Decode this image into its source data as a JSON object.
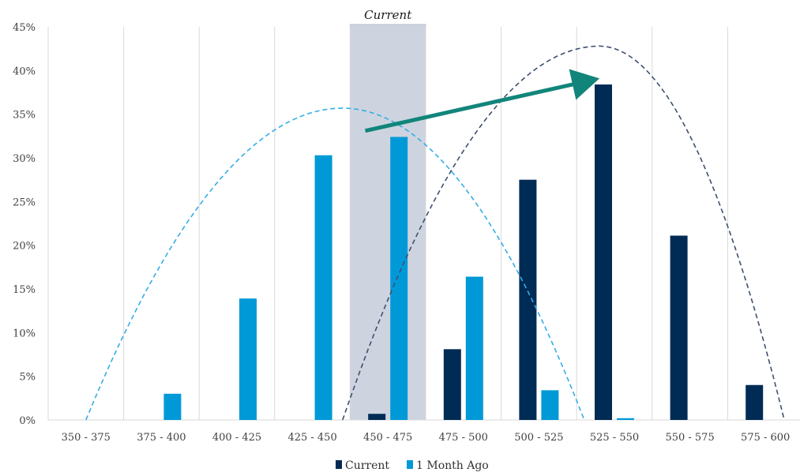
{
  "chart_data": {
    "type": "bar",
    "categories": [
      "350 - 375",
      "375 - 400",
      "400 - 425",
      "425 - 450",
      "450 - 475",
      "475 - 500",
      "500 - 525",
      "525 - 550",
      "550 - 575",
      "575 - 600"
    ],
    "series": [
      {
        "name": "Current",
        "color": "#002b55",
        "values": [
          0,
          0,
          0,
          0,
          0.7,
          8.1,
          27.5,
          38.4,
          21.1,
          4.0
        ]
      },
      {
        "name": "1 Month Ago",
        "color": "#0099d8",
        "values": [
          0,
          3.0,
          13.9,
          30.3,
          32.4,
          16.4,
          3.4,
          0.2,
          0,
          0
        ]
      }
    ],
    "ylim": [
      0,
      45
    ],
    "yticks": [
      "0%",
      "5%",
      "10%",
      "15%",
      "20%",
      "25%",
      "30%",
      "35%",
      "40%",
      "45%"
    ],
    "ytick_values": [
      0,
      5,
      10,
      15,
      20,
      25,
      30,
      35,
      40,
      45
    ],
    "grid": "vertical",
    "legend_position": "bottom",
    "highlight": {
      "category": "450 - 475",
      "label": "Current",
      "color": "#cdd4df"
    },
    "distribution_curves": [
      {
        "series": "1 Month Ago",
        "color": "#33aee6",
        "style": "dashed",
        "x_start": 0.5,
        "peak_x": 3.9,
        "peak_y": 35.7,
        "x_end": 7.1
      },
      {
        "series": "Current",
        "color": "#3f4f6f",
        "style": "dashed",
        "x_start": 3.9,
        "peak_x": 7.3,
        "peak_y": 42.8,
        "x_end": 9.75
      }
    ],
    "shift_arrow": {
      "color": "#12857b",
      "from": [
        4.2,
        33.1
      ],
      "to": [
        7.2,
        38.9
      ]
    }
  }
}
